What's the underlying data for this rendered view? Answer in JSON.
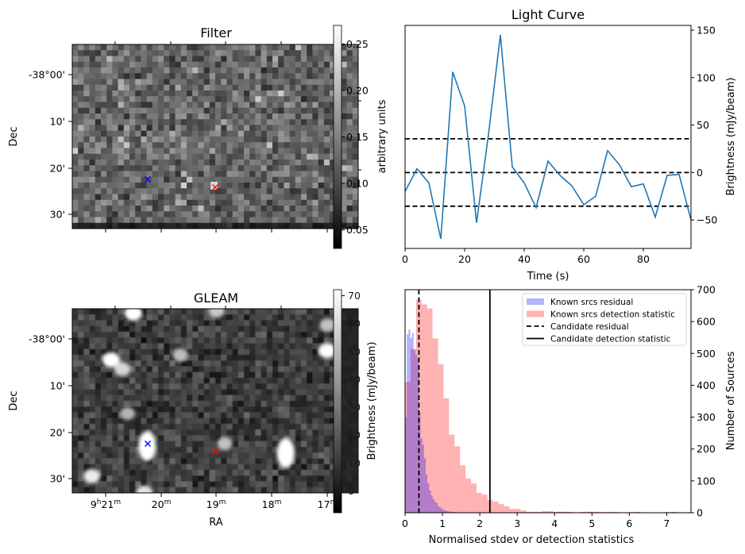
{
  "chart_data": [
    {
      "id": "filter",
      "type": "heatmap",
      "title": "Filter",
      "xlabel": "",
      "ylabel": "Dec",
      "ytick_labels": [
        "-38°00'",
        "10'",
        "20'",
        "30'"
      ],
      "xtick_labels": [
        "",
        "",
        "",
        "",
        ""
      ],
      "colorbar": {
        "label": "arbitrary units",
        "ticks": [
          "0.05",
          "0.10",
          "0.15",
          "0.20",
          "0.25"
        ],
        "range": [
          0.03,
          0.27
        ],
        "cmap": "gray"
      },
      "markers": [
        {
          "name": "known-source",
          "color": "#0000ff",
          "symbol": "x",
          "ra": "9h20m13s",
          "dec": "-38°22.6'"
        },
        {
          "name": "candidate",
          "color": "#ff0000",
          "symbol": "x",
          "ra": "9h19m00s",
          "dec": "-38°24.2'"
        }
      ]
    },
    {
      "id": "light-curve",
      "type": "line",
      "title": "Light Curve",
      "xlabel": "Time (s)",
      "ylabel": "Brightness (mJy/beam)",
      "xlim": [
        0,
        96
      ],
      "ylim": [
        -80,
        155
      ],
      "xticks": [
        0,
        20,
        40,
        60,
        80
      ],
      "yticks": [
        -50,
        0,
        50,
        100,
        150
      ],
      "ytick_labels": [
        "−50",
        "0",
        "50",
        "100",
        "150"
      ],
      "x": [
        0,
        4,
        8,
        12,
        16,
        20,
        24,
        28,
        32,
        36,
        40,
        44,
        48,
        52,
        56,
        60,
        64,
        68,
        72,
        76,
        80,
        84,
        88,
        92,
        96
      ],
      "values": [
        -20,
        4,
        -11,
        -70,
        106,
        70,
        -53,
        40,
        145,
        6,
        -11,
        -37,
        12,
        -3,
        -14,
        -34,
        -25,
        23,
        8,
        -15,
        -12,
        -47,
        -3,
        -2,
        -50
      ],
      "line_color": "#1f77b4",
      "hlines": [
        {
          "y": 35.5,
          "style": "dashed",
          "color": "#000000"
        },
        {
          "y": 0,
          "style": "dashed",
          "color": "#000000"
        },
        {
          "y": -35.5,
          "style": "dashed",
          "color": "#000000"
        }
      ]
    },
    {
      "id": "gleam",
      "type": "heatmap",
      "title": "GLEAM",
      "xlabel": "RA",
      "ylabel": "Dec",
      "xtick_labels": [
        {
          "h": "9",
          "hs": "h",
          "m": "21",
          "ms": "m"
        },
        {
          "h": "",
          "hs": "",
          "m": "20",
          "ms": "m"
        },
        {
          "h": "",
          "hs": "",
          "m": "19",
          "ms": "m"
        },
        {
          "h": "",
          "hs": "",
          "m": "18",
          "ms": "m"
        },
        {
          "h": "",
          "hs": "",
          "m": "17",
          "ms": "m"
        }
      ],
      "ytick_labels": [
        "-38°00'",
        "10'",
        "20'",
        "30'"
      ],
      "colorbar": {
        "label": "Brightness (mJy/beam)",
        "ticks": [
          "0",
          "10",
          "20",
          "30",
          "40",
          "50",
          "60",
          "70"
        ],
        "range": [
          -5,
          75
        ],
        "cmap": "gray"
      },
      "bright_sources": [
        {
          "ra_min": 20.5,
          "dec_min": -5.5,
          "peak": 1.0
        },
        {
          "ra_min": 20.9,
          "dec_min": 4.5,
          "peak": 1.0
        },
        {
          "ra_min": 20.7,
          "dec_min": 6.5,
          "peak": 0.7
        },
        {
          "ra_min": 20.25,
          "dec_min": 23.0,
          "peak": 1.0
        },
        {
          "ra_min": 17.75,
          "dec_min": 24.5,
          "peak": 1.0
        },
        {
          "ra_min": 17.0,
          "dec_min": 2.5,
          "peak": 1.0
        },
        {
          "ra_min": 21.25,
          "dec_min": 29.5,
          "peak": 0.85
        },
        {
          "ra_min": 20.3,
          "dec_min": 33.0,
          "peak": 0.8
        },
        {
          "ra_min": 19.0,
          "dec_min": -6.0,
          "peak": 0.6
        },
        {
          "ra_min": 18.85,
          "dec_min": 22.5,
          "peak": 0.55
        },
        {
          "ra_min": 20.6,
          "dec_min": 16.0,
          "peak": 0.45
        },
        {
          "ra_min": 19.65,
          "dec_min": 3.5,
          "peak": 0.5
        },
        {
          "ra_min": 17.0,
          "dec_min": -3.0,
          "peak": 0.55
        }
      ],
      "markers": [
        {
          "name": "known-source",
          "color": "#0000ff",
          "symbol": "x"
        },
        {
          "name": "candidate",
          "color": "#ff0000",
          "symbol": "x"
        }
      ]
    },
    {
      "id": "histogram",
      "type": "bar",
      "title": "",
      "xlabel": "Normalised stdev or detection statistics",
      "ylabel": "Number of Sources",
      "xlim": [
        0,
        7.65
      ],
      "ylim": [
        0,
        700
      ],
      "xticks": [
        0,
        1,
        2,
        3,
        4,
        5,
        6,
        7
      ],
      "yticks": [
        0,
        100,
        200,
        300,
        400,
        500,
        600,
        700
      ],
      "series": [
        {
          "name": "Known srcs residual",
          "color": "#0000ff",
          "alpha": 0.3,
          "bin_start": 0.0,
          "bin_width": 0.046,
          "values": [
            300,
            560,
            575,
            548,
            565,
            511,
            496,
            484,
            313,
            233,
            213,
            171,
            120,
            92,
            70,
            55,
            43,
            35,
            30,
            20,
            17,
            12,
            9,
            7,
            5,
            4,
            3,
            3,
            2,
            2,
            1,
            1
          ]
        },
        {
          "name": "Known srcs detection statistic",
          "color": "#ff0000",
          "alpha": 0.3,
          "bin_start": 0.0,
          "bin_width": 0.147,
          "values": [
            411,
            514,
            669,
            654,
            641,
            547,
            466,
            359,
            245,
            208,
            149,
            107,
            92,
            62,
            57,
            40,
            35,
            27,
            20,
            12,
            12,
            7,
            3,
            3,
            3,
            5,
            5,
            2,
            2,
            2,
            1,
            1,
            3,
            3,
            1,
            0,
            2,
            2,
            1,
            1,
            1,
            2,
            2,
            1,
            1,
            0,
            0,
            2,
            2,
            0,
            0,
            2,
            2,
            0,
            0,
            0,
            0,
            0,
            0,
            0,
            0,
            0,
            0,
            0,
            0,
            0,
            0,
            0,
            0,
            0,
            0,
            0,
            0,
            0,
            0,
            0,
            0,
            0,
            0,
            0,
            0,
            0,
            0,
            0,
            0,
            0,
            0,
            0,
            0,
            0,
            0,
            0,
            0,
            0,
            0,
            0,
            0,
            0,
            0
          ]
        }
      ],
      "tail_bins": [
        {
          "x0": 4.04,
          "x1": 4.5,
          "v": 3
        },
        {
          "x0": 4.9,
          "x1": 5.3,
          "v": 3
        },
        {
          "x0": 5.5,
          "x1": 5.7,
          "v": 3
        },
        {
          "x0": 6.15,
          "x1": 6.3,
          "v": 3
        },
        {
          "x0": 7.15,
          "x1": 7.3,
          "v": 3
        }
      ],
      "vlines": [
        {
          "name": "Candidate residual",
          "x": 0.37,
          "style": "dashed",
          "color": "#000000"
        },
        {
          "name": "Candidate detection statistic",
          "x": 2.27,
          "style": "solid",
          "color": "#000000"
        }
      ],
      "legend": {
        "placement": "top-right",
        "entries": [
          {
            "label": "Known srcs residual",
            "kind": "patch",
            "color": "#b3b3ff"
          },
          {
            "label": "Known srcs detection statistic",
            "kind": "patch",
            "color": "#ffb3b3"
          },
          {
            "label": "Candidate residual",
            "kind": "dashed",
            "color": "#000000"
          },
          {
            "label": "Candidate detection statistic",
            "kind": "solid",
            "color": "#000000"
          }
        ]
      }
    }
  ]
}
